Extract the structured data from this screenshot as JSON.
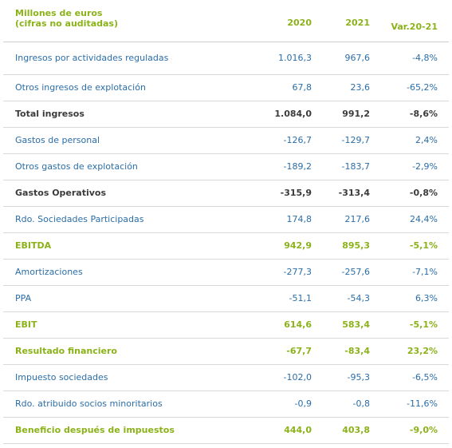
{
  "header": {
    "title_line1": "Millones de euros",
    "title_line2": "(cifras no auditadas)",
    "col_2020": "2020",
    "col_2021": "2021",
    "col_var": "Var.20-21"
  },
  "rows": [
    {
      "label": "Ingresos por actividades reguladas",
      "v2020": "1.016,3",
      "v2021": "967,6",
      "var": "-4,8%",
      "style": "normal"
    },
    {
      "label": "Otros ingresos de explotación",
      "v2020": "67,8",
      "v2021": "23,6",
      "var": "-65,2%",
      "style": "normal"
    },
    {
      "label": "Total ingresos",
      "v2020": "1.084,0",
      "v2021": "991,2",
      "var": "-8,6%",
      "style": "bold"
    },
    {
      "label": "Gastos de personal",
      "v2020": "-126,7",
      "v2021": "-129,7",
      "var": "2,4%",
      "style": "normal"
    },
    {
      "label": "Otros gastos de explotación",
      "v2020": "-189,2",
      "v2021": "-183,7",
      "var": "-2,9%",
      "style": "normal"
    },
    {
      "label": "Gastos Operativos",
      "v2020": "-315,9",
      "v2021": "-313,4",
      "var": "-0,8%",
      "style": "bold"
    },
    {
      "label": "Rdo. Sociedades Participadas",
      "v2020": "174,8",
      "v2021": "217,6",
      "var": "24,4%",
      "style": "normal"
    },
    {
      "label": "EBITDA",
      "v2020": "942,9",
      "v2021": "895,3",
      "var": "-5,1%",
      "style": "green"
    },
    {
      "label": "Amortizaciones",
      "v2020": "-277,3",
      "v2021": "-257,6",
      "var": "-7,1%",
      "style": "normal"
    },
    {
      "label": "PPA",
      "v2020": "-51,1",
      "v2021": "-54,3",
      "var": "6,3%",
      "style": "normal"
    },
    {
      "label": "EBIT",
      "v2020": "614,6",
      "v2021": "583,4",
      "var": "-5,1%",
      "style": "green"
    },
    {
      "label": "Resultado financiero",
      "v2020": "-67,7",
      "v2021": "-83,4",
      "var": "23,2%",
      "style": "green"
    },
    {
      "label": "Impuesto sociedades",
      "v2020": "-102,0",
      "v2021": "-95,3",
      "var": "-6,5%",
      "style": "normal"
    },
    {
      "label": "Rdo. atribuido socios minoritarios",
      "v2020": "-0,9",
      "v2021": "-0,8",
      "var": "-11,6%",
      "style": "normal"
    },
    {
      "label": "Beneficio después de impuestos",
      "v2020": "444,0",
      "v2021": "403,8",
      "var": "-9,0%",
      "style": "green"
    }
  ],
  "colors": {
    "accent_green": "#8cb21a",
    "text_blue": "#2b6ea8",
    "text_dark": "#3b3b3b",
    "rule_grey": "#d9d9d9"
  }
}
